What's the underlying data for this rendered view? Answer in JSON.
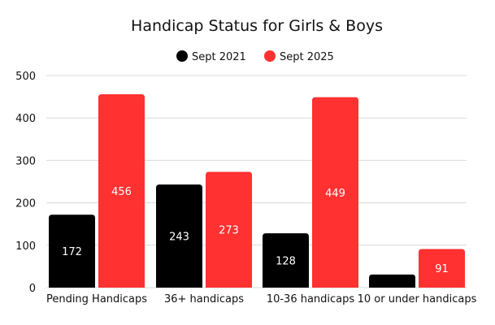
{
  "chart_data": {
    "type": "bar",
    "title": "Handicap Status for Girls & Boys",
    "xlabel": "",
    "ylabel": "",
    "categories": [
      "Pending Handicaps",
      "36+ handicaps",
      "10-36 handicaps",
      "10 or under handicaps"
    ],
    "series": [
      {
        "name": "Sept 2021",
        "color": "#000000",
        "values": [
          172,
          243,
          128,
          31
        ],
        "labels": [
          "172",
          "243",
          "128",
          ""
        ]
      },
      {
        "name": "Sept 2025",
        "color": "#ff3131",
        "values": [
          456,
          273,
          449,
          91
        ],
        "labels": [
          "456",
          "273",
          "449",
          "91"
        ]
      }
    ],
    "ylim": [
      0,
      500
    ],
    "yticks": [
      0,
      100,
      200,
      300,
      400,
      500
    ],
    "grid": true,
    "legend_position": "top-center"
  }
}
